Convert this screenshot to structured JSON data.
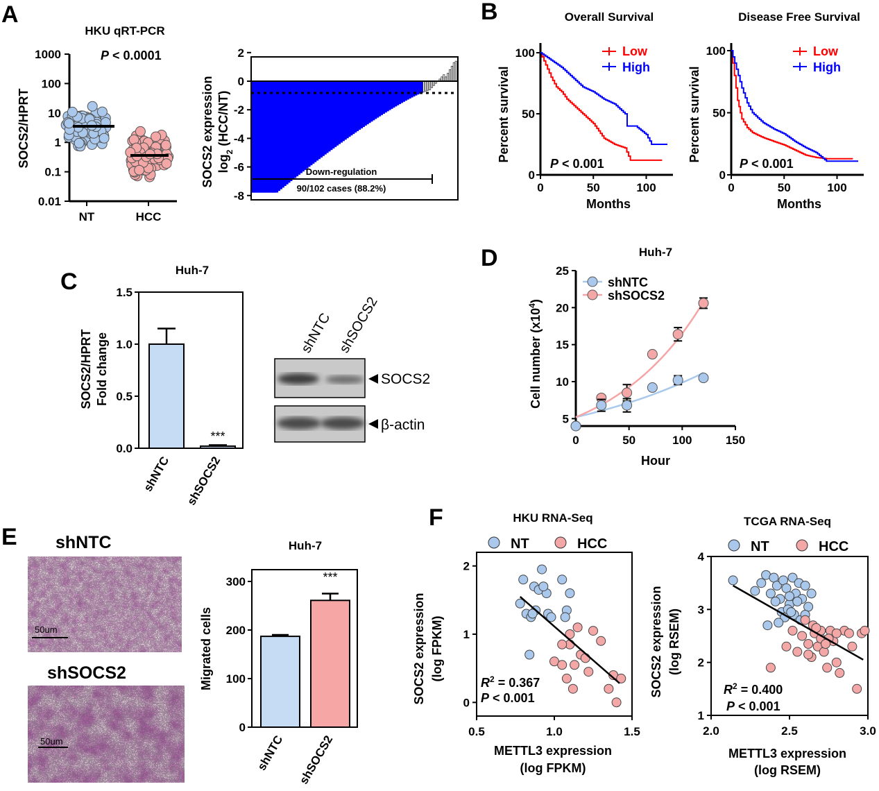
{
  "panels": {
    "A": "A",
    "B": "B",
    "C": "C",
    "D": "D",
    "E": "E",
    "F": "F"
  },
  "colors": {
    "nt": "#a9c8ec",
    "hcc": "#f4a7a7",
    "blue": "#0000ff",
    "red": "#ff0000",
    "bar_nt": "#c6dcf5",
    "bar_sh": "#f7a6a6",
    "fit_blue": "#a8c9ec",
    "fit_red": "#f5a5a5"
  },
  "A_scatter": {
    "title": "HKU qRT-PCR",
    "ylabel": "SOCS2/HPRT",
    "p_italic": "P",
    "p_rest": " < 0.0001",
    "yticks": [
      "1000",
      "100",
      "10",
      "1",
      "0.1",
      "0.01"
    ],
    "xticks": [
      "NT",
      "HCC"
    ]
  },
  "A_waterfall": {
    "ylabel1": "SOCS2 expression",
    "ylabel2_pre": "log",
    "ylabel2_sub": "2",
    "ylabel2_post": " (HCC/NT)",
    "yticks": [
      "2",
      "0",
      "-2",
      "-4",
      "-6",
      "-8"
    ],
    "bracket_label": "Down-regulation",
    "cases_label": "90/102 cases (88.2%)"
  },
  "chart_data": [
    {
      "type": "scatter",
      "panel": "A-left",
      "title": "HKU qRT-PCR",
      "ylabel": "SOCS2/HPRT",
      "yscale": "log",
      "ylim": [
        0.01,
        1000
      ],
      "categories": [
        "NT",
        "HCC"
      ],
      "medians": [
        3.5,
        0.35
      ],
      "annotation": "P < 0.0001"
    },
    {
      "type": "bar",
      "panel": "A-right",
      "ylabel": "SOCS2 expression log2 (HCC/NT)",
      "ylim": [
        -8,
        2
      ],
      "n_cases": 102,
      "n_down": 90,
      "threshold": -1,
      "annotation": "90/102 cases (88.2%)"
    },
    {
      "type": "line",
      "panel": "B-left",
      "title": "Overall Survival",
      "xlabel": "Months",
      "ylabel": "Percent survival",
      "xlim": [
        0,
        120
      ],
      "ylim": [
        0,
        100
      ],
      "series": [
        {
          "name": "Low",
          "x": [
            0,
            5,
            10,
            15,
            20,
            25,
            30,
            40,
            50,
            60,
            70,
            80,
            85,
            100,
            115
          ],
          "y": [
            100,
            90,
            80,
            72,
            68,
            62,
            58,
            50,
            42,
            30,
            25,
            22,
            12,
            12,
            12
          ]
        },
        {
          "name": "High",
          "x": [
            0,
            5,
            10,
            20,
            30,
            40,
            50,
            60,
            70,
            80,
            82,
            90,
            100,
            105,
            115,
            120
          ],
          "y": [
            100,
            97,
            94,
            88,
            80,
            72,
            68,
            62,
            58,
            50,
            40,
            40,
            33,
            25,
            25,
            25
          ]
        }
      ],
      "annotation": "P < 0.001"
    },
    {
      "type": "line",
      "panel": "B-right",
      "title": "Disease Free Survival",
      "xlabel": "Months",
      "ylabel": "Percent survival",
      "xlim": [
        0,
        120
      ],
      "ylim": [
        0,
        100
      ],
      "series": [
        {
          "name": "Low",
          "x": [
            0,
            3,
            6,
            10,
            15,
            20,
            30,
            40,
            50,
            60,
            70,
            80,
            90,
            100,
            115
          ],
          "y": [
            100,
            80,
            60,
            45,
            38,
            34,
            30,
            27,
            24,
            20,
            16,
            14,
            13,
            13,
            13
          ]
        },
        {
          "name": "High",
          "x": [
            0,
            5,
            10,
            15,
            20,
            30,
            40,
            50,
            60,
            70,
            80,
            90,
            100,
            120
          ],
          "y": [
            100,
            85,
            70,
            58,
            50,
            42,
            37,
            33,
            27,
            22,
            18,
            11,
            11,
            11
          ]
        }
      ],
      "annotation": "P < 0.001"
    },
    {
      "type": "bar",
      "panel": "C",
      "title": "Huh-7",
      "ylabel": "SOCS2/HPRT Fold change",
      "categories": [
        "shNTC",
        "shSOCS2"
      ],
      "values": [
        1.0,
        0.02
      ],
      "errors": [
        0.15,
        0.01
      ],
      "ylim": [
        0,
        1.5
      ],
      "annotation": "***"
    },
    {
      "type": "scatter",
      "panel": "D",
      "title": "Huh-7",
      "xlabel": "Hour",
      "ylabel": "Cell number (x10^4)",
      "xlim": [
        0,
        150
      ],
      "ylim": [
        4,
        25
      ],
      "series": [
        {
          "name": "shNTC",
          "x": [
            0,
            24,
            48,
            72,
            96,
            120
          ],
          "y": [
            4,
            6.8,
            6.8,
            9.2,
            10.2,
            10.5
          ]
        },
        {
          "name": "shSOCS2",
          "x": [
            0,
            24,
            48,
            72,
            96,
            120
          ],
          "y": [
            4,
            7.8,
            8.5,
            13.7,
            16.4,
            20.6
          ]
        }
      ]
    },
    {
      "type": "bar",
      "panel": "E",
      "title": "Huh-7",
      "ylabel": "Migrated cells",
      "categories": [
        "shNTC",
        "shSOCS2"
      ],
      "values": [
        187,
        261
      ],
      "errors": [
        3,
        14
      ],
      "ylim": [
        0,
        300
      ],
      "annotation": "***"
    },
    {
      "type": "scatter",
      "panel": "F-left",
      "title": "HKU RNA-Seq",
      "xlabel": "METTL3 expression (log FPKM)",
      "ylabel": "SOCS2 expression (log FPKM)",
      "xlim": [
        0.5,
        1.5
      ],
      "ylim": [
        -0.2,
        2.2
      ],
      "series": [
        {
          "name": "NT",
          "x": [
            0.78,
            0.8,
            0.82,
            0.85,
            0.87,
            0.88,
            0.9,
            0.92,
            0.95,
            0.96,
            0.98,
            1.05,
            1.08,
            1.1,
            0.84,
            0.86,
            0.93,
            1.07
          ],
          "y": [
            1.45,
            1.8,
            1.3,
            1.25,
            1.7,
            1.35,
            1.65,
            1.95,
            1.6,
            1.3,
            1.25,
            1.8,
            1.35,
            1.6,
            0.7,
            1.3,
            1.7,
            1.25
          ]
        },
        {
          "name": "HCC",
          "x": [
            1.0,
            1.05,
            1.08,
            1.1,
            1.12,
            1.15,
            1.17,
            1.2,
            1.22,
            1.25,
            1.3,
            1.35,
            1.38,
            1.4,
            1.43,
            1.05,
            1.1,
            1.13
          ],
          "y": [
            0.6,
            0.55,
            0.35,
            0.85,
            0.2,
            1.1,
            0.7,
            0.65,
            0.45,
            1.05,
            0.9,
            0.2,
            0.4,
            0.0,
            0.35,
            0.85,
            1.0,
            0.55
          ]
        }
      ],
      "fit": {
        "x": [
          0.78,
          1.42
        ],
        "y": [
          1.55,
          0.28
        ]
      },
      "annotation": [
        "R2 = 0.367",
        "P < 0.001"
      ]
    },
    {
      "type": "scatter",
      "panel": "F-right",
      "title": "TCGA RNA-Seq",
      "xlabel": "METTL3 expression (log RSEM)",
      "ylabel": "SOCS2 expression (log RSEM)",
      "xlim": [
        2.0,
        3.0
      ],
      "ylim": [
        1,
        4
      ],
      "series": [
        {
          "name": "NT",
          "x": [
            2.14,
            2.28,
            2.32,
            2.35,
            2.38,
            2.4,
            2.42,
            2.44,
            2.46,
            2.48,
            2.5,
            2.52,
            2.54,
            2.56,
            2.58,
            2.6,
            2.62,
            2.64,
            2.45,
            2.47,
            2.5,
            2.53,
            2.55,
            2.57,
            2.6,
            2.43,
            2.49,
            2.51,
            2.36,
            2.41
          ],
          "y": [
            3.55,
            3.35,
            3.5,
            3.65,
            3.3,
            3.6,
            3.45,
            3.2,
            3.55,
            3.4,
            3.1,
            3.6,
            3.3,
            3.5,
            3.2,
            3.45,
            3.05,
            3.3,
            2.95,
            2.85,
            3.25,
            2.9,
            3.15,
            2.8,
            2.9,
            2.75,
            3.0,
            2.95,
            2.7,
            3.15
          ]
        },
        {
          "name": "HCC",
          "x": [
            2.38,
            2.48,
            2.52,
            2.55,
            2.58,
            2.6,
            2.62,
            2.64,
            2.66,
            2.68,
            2.7,
            2.72,
            2.74,
            2.76,
            2.78,
            2.8,
            2.82,
            2.85,
            2.88,
            2.9,
            2.93,
            2.96,
            2.98,
            2.65,
            2.7,
            2.75,
            2.62,
            2.67,
            2.73,
            2.8
          ],
          "y": [
            1.9,
            2.3,
            2.6,
            2.2,
            2.5,
            2.8,
            2.35,
            2.1,
            2.55,
            2.3,
            2.45,
            2.2,
            1.9,
            2.6,
            2.4,
            2.0,
            1.8,
            2.6,
            2.55,
            2.3,
            1.5,
            2.55,
            2.6,
            2.7,
            2.6,
            2.45,
            2.15,
            2.65,
            2.35,
            2.55
          ]
        }
      ],
      "fit": {
        "x": [
          2.14,
          2.97
        ],
        "y": [
          3.45,
          2.05
        ]
      },
      "annotation": [
        "R2 = 0.400",
        "P < 0.001"
      ]
    }
  ],
  "B_left": {
    "title": "Overall Survival",
    "ylabel": "Percent survival",
    "xlabel": "Months",
    "legend": [
      "Low",
      "High"
    ],
    "p_italic": "P",
    "p_rest": " < 0.001",
    "yticks": [
      "100",
      "50",
      "0"
    ],
    "xticks": [
      "0",
      "50",
      "100"
    ]
  },
  "B_right": {
    "title": "Disease Free Survival",
    "ylabel": "Percent survival",
    "xlabel": "Months",
    "legend": [
      "Low",
      "High"
    ],
    "p_italic": "P",
    "p_rest": " < 0.001",
    "yticks": [
      "100",
      "50",
      "0"
    ],
    "xticks": [
      "0",
      "50",
      "100"
    ]
  },
  "C_bar": {
    "title": "Huh-7",
    "ylabel1": "SOCS2/HPRT",
    "ylabel2": "Fold change",
    "yticks": [
      "1.5",
      "1.0",
      "0.5",
      "0.0"
    ],
    "xticks": [
      "shNTC",
      "shSOCS2"
    ],
    "stars": "***"
  },
  "C_blot": {
    "lanes": [
      "shNTC",
      "shSOCS2"
    ],
    "band1": "SOCS2",
    "band2": "β-actin"
  },
  "D_growth": {
    "title": "Huh-7",
    "ylabel_pre": "Cell number (x10",
    "ylabel_sup": "4",
    "ylabel_post": ")",
    "xlabel": "Hour",
    "legend": [
      "shNTC",
      "shSOCS2"
    ],
    "yticks": [
      "25",
      "20",
      "15",
      "10",
      "5"
    ],
    "xticks": [
      "0",
      "50",
      "100",
      "150"
    ]
  },
  "E_images": {
    "label1": "shNTC",
    "label2": "shSOCS2",
    "scale1": "50um",
    "scale2": "50um"
  },
  "E_bar": {
    "title": "Huh-7",
    "ylabel": "Migrated cells",
    "yticks": [
      "300",
      "200",
      "100",
      "0"
    ],
    "xticks": [
      "shNTC",
      "shSOCS2"
    ],
    "stars": "***"
  },
  "F_left": {
    "title": "HKU RNA-Seq",
    "legend": [
      "NT",
      "HCC"
    ],
    "ylabel1": "SOCS2 expression",
    "ylabel2": "(log FPKM)",
    "xlabel1": "METTL3 expression",
    "xlabel2": "(log  FPKM)",
    "r2": " = 0.367",
    "p_rest": " < 0.001",
    "yticks": [
      "2",
      "1",
      "0"
    ],
    "xticks": [
      "0.5",
      "1.0",
      "1.5"
    ]
  },
  "F_right": {
    "title": "TCGA RNA-Seq",
    "legend": [
      "NT",
      "HCC"
    ],
    "ylabel1": "SOCS2 expression",
    "ylabel2": "(log RSEM)",
    "xlabel1": "METTL3 expression",
    "xlabel2": "(log  RSEM)",
    "r2": " = 0.400",
    "p_rest": " < 0.001",
    "yticks": [
      "4",
      "3",
      "2",
      "1"
    ],
    "xticks": [
      "2.0",
      "2.5",
      "3.0"
    ]
  },
  "stat_labels": {
    "R": "R",
    "R_sup": "2",
    "P": "P"
  }
}
